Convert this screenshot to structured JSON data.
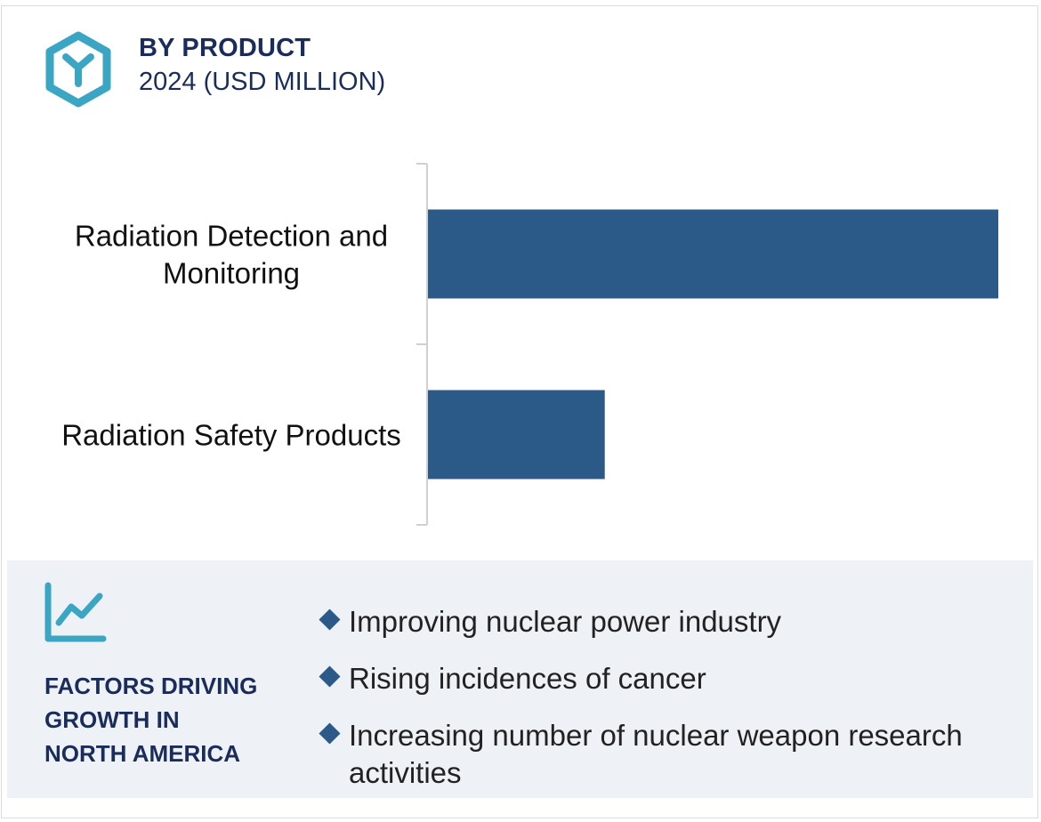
{
  "header": {
    "title": "BY PRODUCT",
    "subtitle": "2024 (USD MILLION)",
    "icon": "hexagon-logo-icon"
  },
  "chart_data": {
    "type": "bar",
    "orientation": "horizontal",
    "categories": [
      "Radiation Detection and Monitoring",
      "Radiation Safety Products"
    ],
    "category_lines": [
      [
        "Radiation Detection and",
        "Monitoring"
      ],
      [
        "Radiation Safety Products"
      ]
    ],
    "values": [
      100,
      31
    ],
    "value_axis_shown": false,
    "xlim": [
      0,
      100
    ],
    "grid": false,
    "legend": "none",
    "bar_color": "#2b5a88"
  },
  "factors": {
    "icon": "line-chart-icon",
    "heading_lines": [
      "FACTORS DRIVING",
      "GROWTH IN",
      "NORTH AMERICA"
    ],
    "items": [
      "Improving nuclear power industry",
      "Rising  incidences of cancer",
      "Increasing number of nuclear weapon research activities"
    ],
    "bullet_icon": "diamond-bullet-icon"
  },
  "colors": {
    "brand_teal": "#3aa6c4",
    "title_navy": "#1a2d5a",
    "bar": "#2b5a88",
    "panel_bg": "#eef1f5"
  }
}
